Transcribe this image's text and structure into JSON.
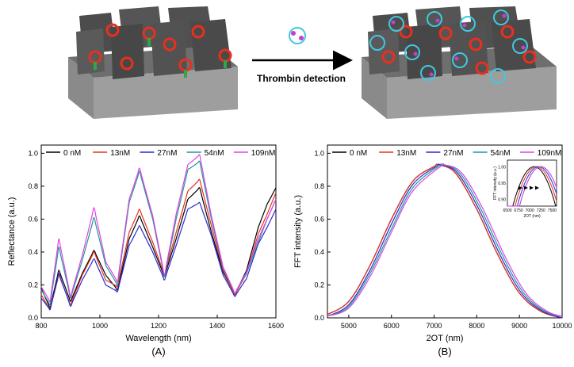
{
  "schematic": {
    "arrow_label": "Thrombin detection"
  },
  "colors": {
    "s0": "#000000",
    "s13": "#e8301e",
    "s27": "#2a2ad0",
    "s54": "#1e9a96",
    "s109": "#e040e8"
  },
  "chart_data": [
    {
      "type": "line",
      "panel_label": "(A)",
      "xlabel": "Wavelength (nm)",
      "ylabel": "Reflectance (a.u.)",
      "xlim": [
        800,
        1600
      ],
      "ylim": [
        0,
        1.05
      ],
      "xticks": [
        800,
        1000,
        1200,
        1400,
        1600
      ],
      "yticks": [
        0.0,
        0.2,
        0.4,
        0.6,
        0.8,
        1.0
      ],
      "yticklabels": [
        "0.0",
        "0.2",
        "0.4",
        "0.6",
        "0.8",
        "1.0"
      ],
      "legend": "top",
      "series": [
        {
          "name": "0 nM",
          "color_key": "s0",
          "x": [
            800,
            830,
            860,
            900,
            940,
            980,
            1020,
            1060,
            1100,
            1135,
            1180,
            1220,
            1260,
            1300,
            1340,
            1380,
            1420,
            1460,
            1500,
            1540,
            1570,
            1600
          ],
          "y": [
            0.18,
            0.06,
            0.29,
            0.1,
            0.27,
            0.41,
            0.26,
            0.17,
            0.48,
            0.62,
            0.43,
            0.25,
            0.48,
            0.72,
            0.79,
            0.52,
            0.28,
            0.14,
            0.29,
            0.55,
            0.69,
            0.79
          ]
        },
        {
          "name": "13nM",
          "color_key": "s13",
          "x": [
            800,
            830,
            860,
            900,
            940,
            980,
            1020,
            1060,
            1100,
            1135,
            1180,
            1220,
            1260,
            1300,
            1340,
            1380,
            1420,
            1460,
            1500,
            1540,
            1570,
            1600
          ],
          "y": [
            0.14,
            0.05,
            0.26,
            0.08,
            0.26,
            0.4,
            0.23,
            0.19,
            0.52,
            0.66,
            0.46,
            0.26,
            0.52,
            0.77,
            0.84,
            0.56,
            0.29,
            0.14,
            0.27,
            0.51,
            0.63,
            0.76
          ]
        },
        {
          "name": "27nM",
          "color_key": "s27",
          "x": [
            800,
            830,
            860,
            900,
            940,
            980,
            1020,
            1060,
            1100,
            1135,
            1180,
            1220,
            1260,
            1300,
            1340,
            1380,
            1420,
            1460,
            1500,
            1540,
            1570,
            1600
          ],
          "y": [
            0.12,
            0.05,
            0.27,
            0.07,
            0.23,
            0.36,
            0.2,
            0.16,
            0.44,
            0.56,
            0.4,
            0.23,
            0.44,
            0.66,
            0.7,
            0.5,
            0.26,
            0.13,
            0.24,
            0.45,
            0.55,
            0.66
          ]
        },
        {
          "name": "54nM",
          "color_key": "s54",
          "x": [
            800,
            830,
            860,
            900,
            940,
            980,
            1020,
            1060,
            1100,
            1135,
            1180,
            1220,
            1260,
            1300,
            1340,
            1380,
            1420,
            1460,
            1500,
            1540,
            1570,
            1600
          ],
          "y": [
            0.17,
            0.08,
            0.43,
            0.12,
            0.35,
            0.61,
            0.32,
            0.2,
            0.7,
            0.89,
            0.6,
            0.25,
            0.6,
            0.9,
            0.95,
            0.6,
            0.3,
            0.15,
            0.27,
            0.46,
            0.6,
            0.72
          ]
        },
        {
          "name": "109nM",
          "color_key": "s109",
          "x": [
            800,
            830,
            860,
            900,
            940,
            980,
            1020,
            1060,
            1100,
            1135,
            1180,
            1220,
            1260,
            1300,
            1340,
            1380,
            1420,
            1460,
            1500,
            1540,
            1570,
            1600
          ],
          "y": [
            0.19,
            0.1,
            0.48,
            0.13,
            0.38,
            0.67,
            0.34,
            0.22,
            0.72,
            0.91,
            0.62,
            0.26,
            0.63,
            0.93,
            0.99,
            0.62,
            0.31,
            0.15,
            0.28,
            0.48,
            0.6,
            0.72
          ]
        }
      ]
    },
    {
      "type": "line",
      "panel_label": "(B)",
      "xlabel": "2OT (nm)",
      "ylabel": "FFT intensity (a.u.)",
      "xlim": [
        4500,
        10000
      ],
      "ylim": [
        0,
        1.05
      ],
      "xticks": [
        5000,
        6000,
        7000,
        8000,
        9000,
        10000
      ],
      "yticks": [
        0.0,
        0.2,
        0.4,
        0.6,
        0.8,
        1.0
      ],
      "yticklabels": [
        "0.0",
        "0.2",
        "0.4",
        "0.6",
        "0.8",
        "1.0"
      ],
      "legend": "top",
      "series": [
        {
          "name": "0 nM",
          "color_key": "s0",
          "x": [
            4500,
            5000,
            5500,
            6000,
            6500,
            7000,
            7100,
            7500,
            8000,
            8500,
            9000,
            9500,
            10000
          ],
          "y": [
            0.02,
            0.1,
            0.32,
            0.6,
            0.83,
            0.92,
            0.93,
            0.88,
            0.66,
            0.38,
            0.15,
            0.04,
            0.0
          ]
        },
        {
          "name": "13nM",
          "color_key": "s13",
          "x": [
            4500,
            5000,
            5500,
            6000,
            6500,
            7000,
            7100,
            7500,
            8000,
            8500,
            9000,
            9500,
            10000
          ],
          "y": [
            0.02,
            0.1,
            0.32,
            0.6,
            0.83,
            0.92,
            0.93,
            0.88,
            0.66,
            0.38,
            0.15,
            0.04,
            0.0
          ]
        },
        {
          "name": "27nM",
          "color_key": "s27",
          "x": [
            4500,
            5000,
            5500,
            6000,
            6500,
            7050,
            7150,
            7550,
            8050,
            8550,
            9050,
            9550,
            10000
          ],
          "y": [
            0.01,
            0.08,
            0.29,
            0.57,
            0.81,
            0.92,
            0.93,
            0.88,
            0.66,
            0.38,
            0.15,
            0.04,
            0.0
          ]
        },
        {
          "name": "54nM",
          "color_key": "s54",
          "x": [
            4500,
            5000,
            5500,
            6000,
            6500,
            7100,
            7200,
            7600,
            8100,
            8600,
            9100,
            9600,
            10000
          ],
          "y": [
            0.01,
            0.07,
            0.27,
            0.54,
            0.79,
            0.92,
            0.93,
            0.88,
            0.66,
            0.38,
            0.15,
            0.04,
            0.01
          ]
        },
        {
          "name": "109nM",
          "color_key": "s109",
          "x": [
            4500,
            5000,
            5500,
            6000,
            6500,
            7150,
            7250,
            7650,
            8150,
            8650,
            9150,
            9650,
            10000
          ],
          "y": [
            0.01,
            0.06,
            0.25,
            0.52,
            0.77,
            0.92,
            0.93,
            0.88,
            0.66,
            0.38,
            0.15,
            0.04,
            0.01
          ]
        }
      ],
      "inset": {
        "xlabel": "2OT (nm)",
        "ylabel": "FFT intensity (a.u.)",
        "xlim": [
          6500,
          7600
        ],
        "ylim": [
          0.88,
          1.02
        ],
        "xticks": [
          6500,
          6750,
          7000,
          7250,
          7500
        ],
        "yticks": [
          0.9,
          0.95,
          1.0
        ],
        "yticklabels": [
          "0.90",
          "0.95",
          "1.00"
        ],
        "peaks": [
          7100,
          7150,
          7200,
          7250
        ],
        "half_width": 480
      }
    }
  ]
}
